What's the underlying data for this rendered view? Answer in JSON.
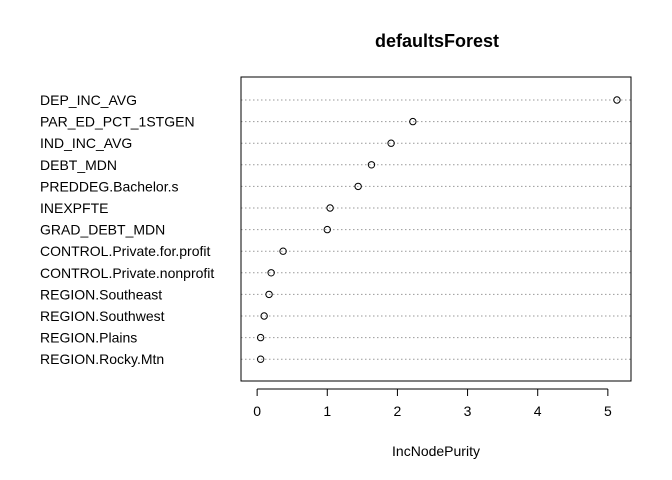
{
  "chart_data": {
    "type": "scatter",
    "title": "defaultsForest",
    "xlabel": "IncNodePurity",
    "ylabel": "",
    "xlim": [
      -0.23,
      5.33
    ],
    "xticks": [
      0,
      1,
      2,
      3,
      4,
      5
    ],
    "grid": "horizontal dotted lines at each variable",
    "categories": [
      "DEP_INC_AVG",
      "PAR_ED_PCT_1STGEN",
      "IND_INC_AVG",
      "DEBT_MDN",
      "PREDDEG.Bachelor.s",
      "INEXPFTE",
      "GRAD_DEBT_MDN",
      "CONTROL.Private.for.profit",
      "CONTROL.Private.nonprofit",
      "REGION.Southeast",
      "REGION.Southwest",
      "REGION.Plains",
      "REGION.Rocky.Mtn"
    ],
    "values": [
      5.13,
      2.22,
      1.91,
      1.63,
      1.44,
      1.04,
      1.0,
      0.37,
      0.2,
      0.17,
      0.1,
      0.05,
      0.05
    ]
  }
}
